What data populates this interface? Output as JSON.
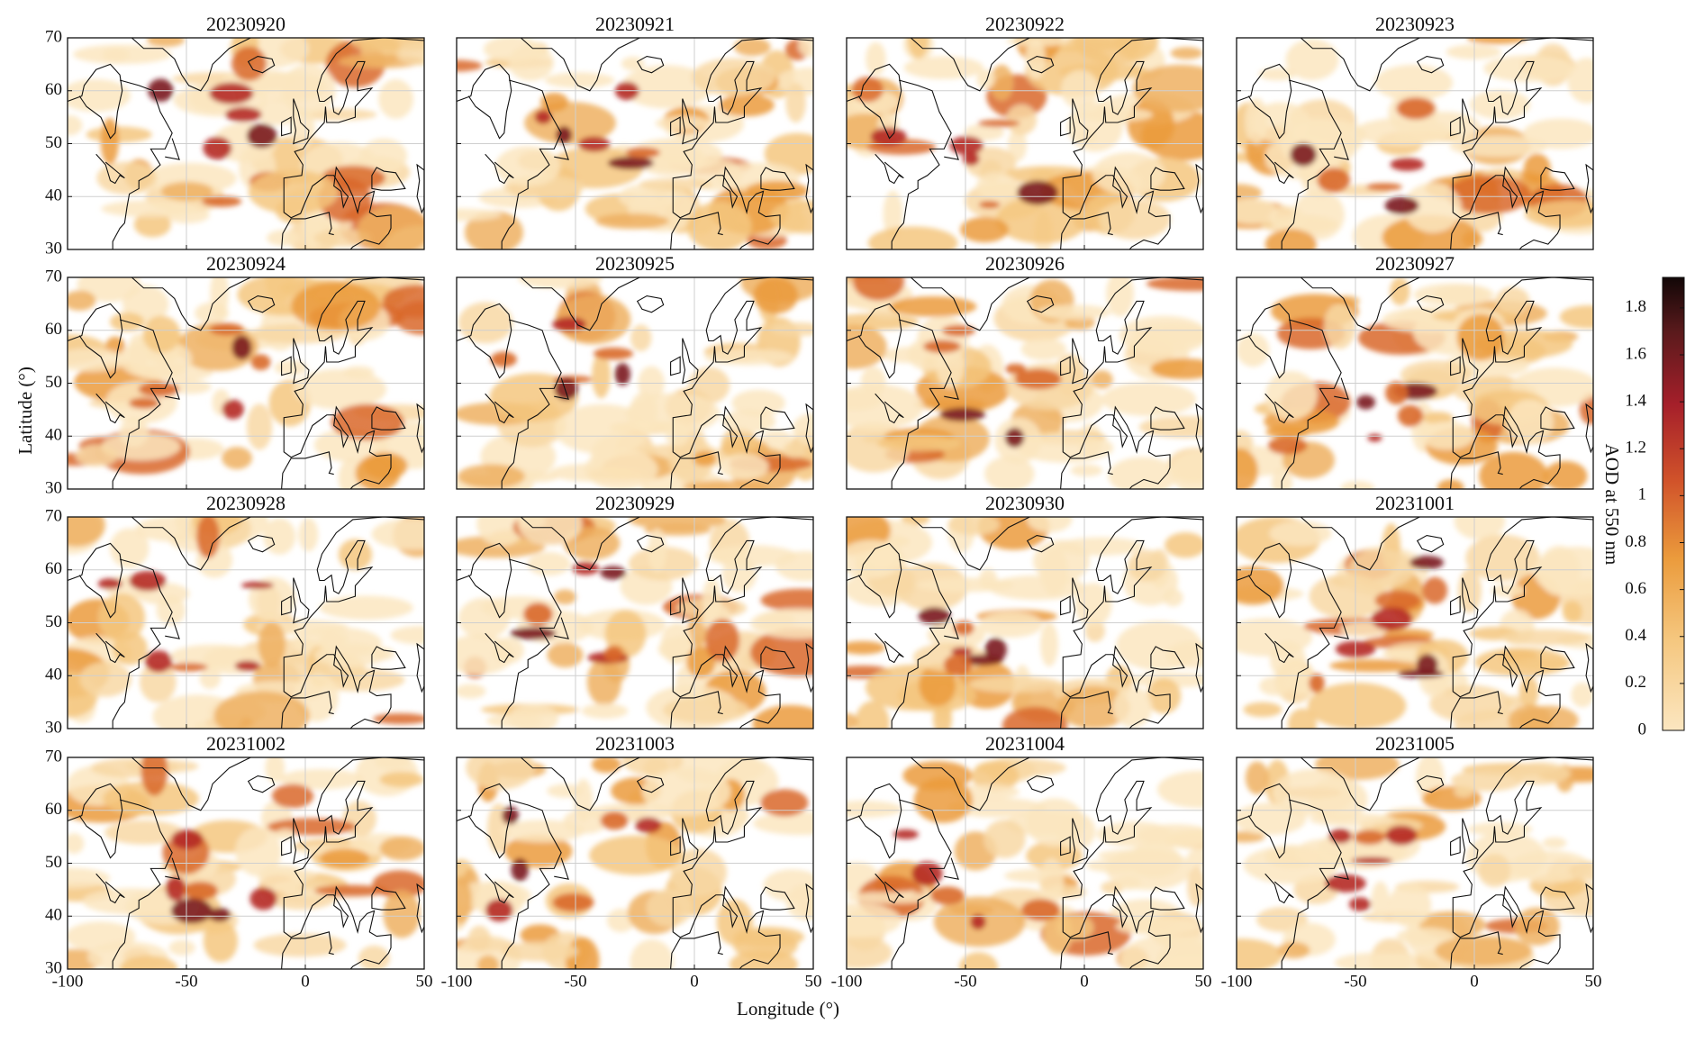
{
  "panels": [
    {
      "title": "20230920"
    },
    {
      "title": "20230921"
    },
    {
      "title": "20230922"
    },
    {
      "title": "20230923"
    },
    {
      "title": "20230924"
    },
    {
      "title": "20230925"
    },
    {
      "title": "20230926"
    },
    {
      "title": "20230927"
    },
    {
      "title": "20230928"
    },
    {
      "title": "20230929"
    },
    {
      "title": "20230930"
    },
    {
      "title": "20231001"
    },
    {
      "title": "20231002"
    },
    {
      "title": "20231003"
    },
    {
      "title": "20231004"
    },
    {
      "title": "20231005"
    }
  ],
  "axes": {
    "xlim": [
      -100,
      50
    ],
    "ylim": [
      30,
      70
    ],
    "xticks": [
      -100,
      -50,
      0,
      50
    ],
    "yticks": [
      30,
      40,
      50,
      60,
      70
    ],
    "xlabel": "Longitude (°)",
    "ylabel": "Latitude (°)",
    "grid": true
  },
  "colorbar": {
    "label": "AOD at 550 nm",
    "clim": [
      0,
      1.93
    ],
    "ticks": [
      0,
      0.2,
      0.4,
      0.6,
      0.8,
      1,
      1.2,
      1.4,
      1.6,
      1.8
    ]
  }
}
